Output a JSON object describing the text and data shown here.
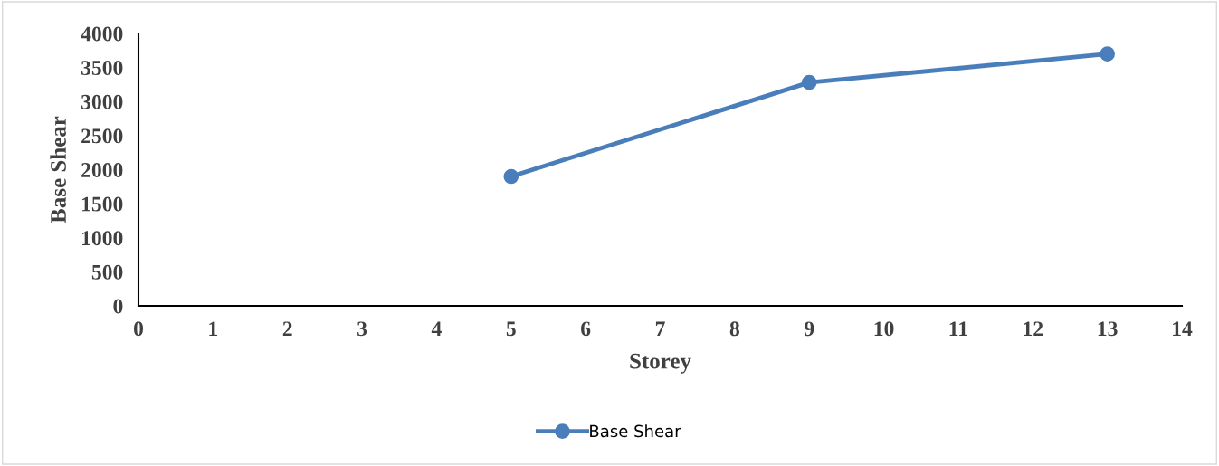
{
  "chart_data": {
    "type": "line",
    "xlabel": "Storey",
    "ylabel": "Base Shear",
    "x": [
      5,
      9,
      13
    ],
    "series": [
      {
        "name": "Base Shear",
        "color": "#4a7ebb",
        "values": [
          1900,
          3280,
          3700
        ]
      }
    ],
    "xlim": [
      0,
      14
    ],
    "xticks": [
      0,
      1,
      2,
      3,
      4,
      5,
      6,
      7,
      8,
      9,
      10,
      11,
      12,
      13,
      14
    ],
    "ylim": [
      0,
      4000
    ],
    "yticks": [
      0,
      500,
      1000,
      1500,
      2000,
      2500,
      3000,
      3500,
      4000
    ],
    "grid": false,
    "legend": "bottom",
    "marker": "circle",
    "line_style": "solid"
  }
}
